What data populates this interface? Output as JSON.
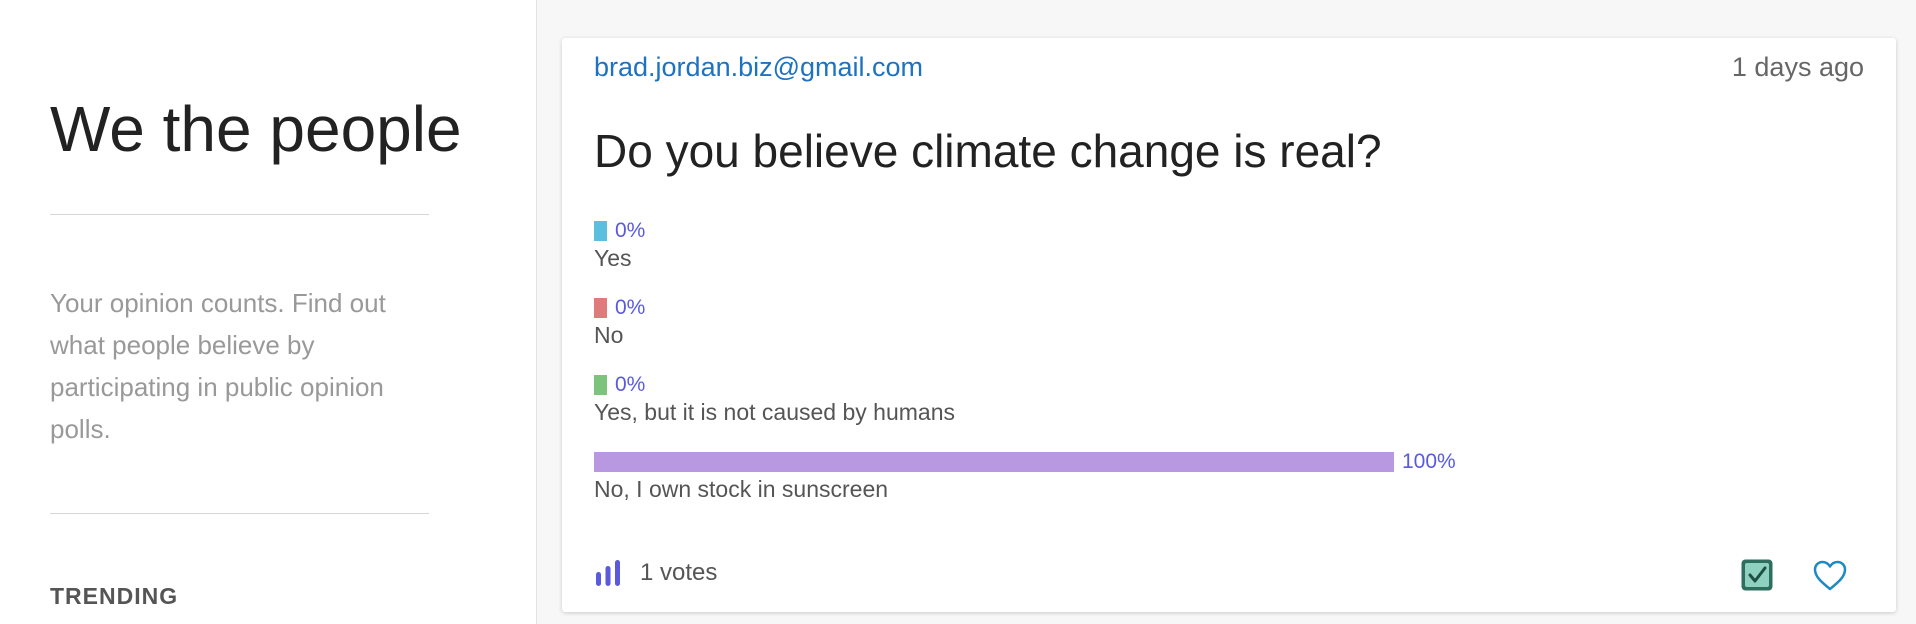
{
  "sidebar": {
    "title": "We the people",
    "tagline": "Your opinion counts. Find out what people believe by participating in public opinion polls.",
    "trending_heading": "TRENDING"
  },
  "poll": {
    "author": "brad.jordan.biz@gmail.com",
    "time_ago": "1 days ago",
    "question": "Do you believe climate change is real?",
    "options": [
      {
        "label": "Yes",
        "percent_text": "0%",
        "fraction": 0.0,
        "color": "#5bc0de"
      },
      {
        "label": "No",
        "percent_text": "0%",
        "fraction": 0.0,
        "color": "#e07b7b"
      },
      {
        "label": "Yes, but it is not caused by humans",
        "percent_text": "0%",
        "fraction": 0.0,
        "color": "#7cc47c"
      },
      {
        "label": "No, I own stock in sunscreen",
        "percent_text": "100%",
        "fraction": 1.0,
        "color": "#b898e0"
      }
    ],
    "votes_text": "1 votes",
    "icons": {
      "votes": "bar-chart-icon",
      "voted": "checkbox-checked-icon",
      "favorite": "heart-icon"
    }
  }
}
